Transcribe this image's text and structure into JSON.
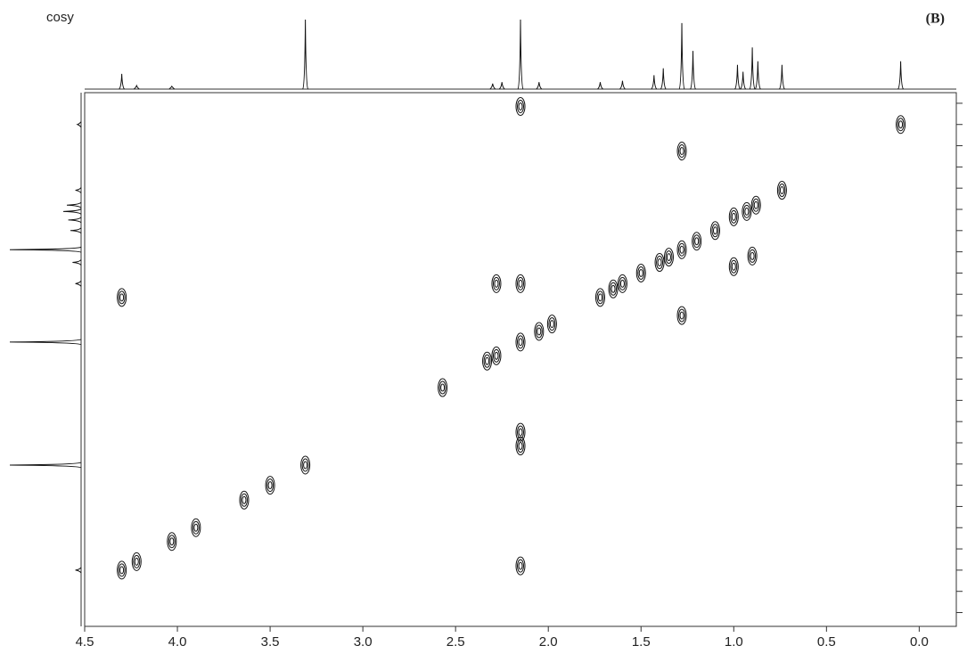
{
  "chart_data": {
    "type": "contour",
    "title": "cosy",
    "panel_label": "(B)",
    "xlim": [
      4.5,
      -0.2
    ],
    "xticks": [
      4.5,
      {
        "value": 4,
        "label": "4.0"
      },
      3.5,
      {
        "value": 3,
        "label": "3.0"
      },
      2.5,
      {
        "value": 2,
        "label": "2.0"
      },
      1.5,
      {
        "value": 1,
        "label": "1.0"
      },
      0.5,
      {
        "value": 0,
        "label": "0.0"
      }
    ],
    "ylim": [
      4.83,
      -0.2
    ],
    "yticks": [
      -0.1,
      0.1,
      0.3,
      0.5,
      0.7,
      0.9,
      1.1,
      1.3,
      1.5,
      1.7,
      1.9,
      2.1,
      2.3,
      2.5,
      2.7,
      2.9,
      3.1,
      3.3,
      3.5,
      3.7,
      3.9,
      4.1,
      4.3,
      4.5,
      4.7
    ],
    "color": "#111111",
    "peaks": {
      "x": [
        0.1,
        0.74,
        0.88,
        0.93,
        1.0,
        0.9,
        1.0,
        1.1,
        1.2,
        1.28,
        1.35,
        1.4,
        1.5,
        1.6,
        1.65,
        1.72,
        2.15,
        2.05,
        1.98,
        2.28,
        2.33,
        2.28,
        4.3,
        2.57,
        3.31,
        3.5,
        3.64,
        3.9,
        4.03,
        4.22,
        4.3,
        2.15,
        2.15,
        2.15,
        2.15,
        1.28,
        1.28,
        2.15
      ],
      "y": [
        0.1,
        0.72,
        0.86,
        0.92,
        0.97,
        1.34,
        1.44,
        1.1,
        1.2,
        1.28,
        1.35,
        1.4,
        1.5,
        1.6,
        1.65,
        1.73,
        2.15,
        2.05,
        1.98,
        2.28,
        2.33,
        1.6,
        1.73,
        2.58,
        3.31,
        3.5,
        3.64,
        3.9,
        4.03,
        4.22,
        4.3,
        1.6,
        3.13,
        3.0,
        4.26,
        0.35,
        1.9,
        -0.07
      ]
    },
    "top_projection": {
      "x": [
        4.3,
        4.22,
        4.03,
        3.31,
        2.3,
        2.25,
        2.15,
        2.05,
        1.72,
        1.6,
        1.43,
        1.38,
        1.28,
        1.22,
        0.98,
        0.95,
        0.9,
        0.87,
        0.74,
        0.1
      ],
      "values": [
        22,
        5,
        4,
        100,
        8,
        10,
        100,
        10,
        10,
        12,
        20,
        30,
        95,
        55,
        35,
        25,
        60,
        40,
        35,
        40
      ]
    },
    "left_projection": {
      "y": [
        0.1,
        0.72,
        0.86,
        0.92,
        1.0,
        1.1,
        1.28,
        1.4,
        1.6,
        2.15,
        3.31,
        4.3
      ],
      "values": [
        5,
        8,
        20,
        25,
        18,
        15,
        100,
        12,
        8,
        100,
        100,
        8
      ]
    }
  }
}
